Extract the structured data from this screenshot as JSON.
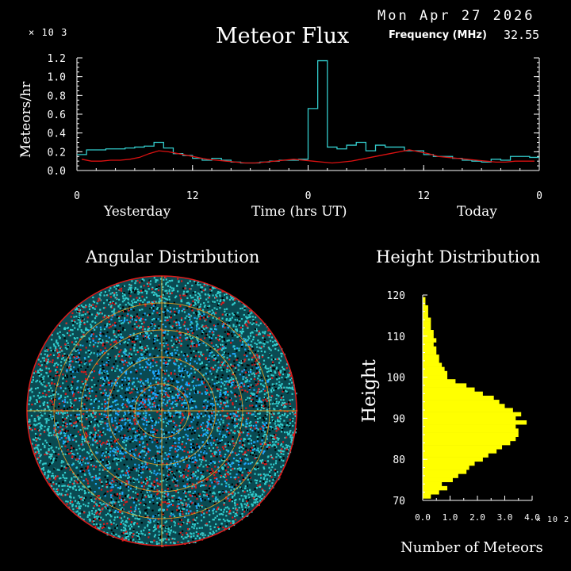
{
  "header": {
    "date": "Mon Apr 27 2026",
    "title": "Meteor Flux",
    "frequency_label": "Frequency (MHz)",
    "frequency_value": "32.55"
  },
  "colors": {
    "background": "#000000",
    "flux_series_1": "#33cccc",
    "flux_series_2": "#dd1111",
    "angular_cyan": "#33cccc",
    "angular_blue": "#1ea8ff",
    "angular_red": "#dd1a1a",
    "angular_grid": "#e8a020",
    "height_bars": "#ffff00",
    "axes": "#ffffff"
  },
  "chart_data": [
    {
      "type": "line",
      "title": "Meteor Flux",
      "multiplier_label": "× 10 3",
      "ylabel": "Meteors/hr",
      "xlabel": "Time (hrs UT)",
      "x_region_labels": [
        "Yesterday",
        "Today"
      ],
      "xtick_labels": [
        "0",
        "12",
        "0",
        "12",
        "0"
      ],
      "ytick_labels": [
        "0.0",
        "0.2",
        "0.4",
        "0.6",
        "0.8",
        "1.0",
        "1.2"
      ],
      "ylim": [
        0,
        1.2
      ],
      "xlim": [
        0,
        48
      ],
      "series": [
        {
          "step": true,
          "x": [
            0,
            1,
            2,
            3,
            4,
            5,
            6,
            7,
            8,
            9,
            10,
            11,
            12,
            13,
            14,
            15,
            16,
            17,
            18,
            19,
            20,
            21,
            22,
            23,
            24,
            25,
            26,
            27,
            28,
            29,
            30,
            31,
            32,
            33,
            34,
            35,
            36,
            37,
            38,
            39,
            40,
            41,
            42,
            43,
            44,
            45,
            46,
            47
          ],
          "values": [
            0.17,
            0.22,
            0.22,
            0.23,
            0.23,
            0.24,
            0.25,
            0.26,
            0.3,
            0.24,
            0.18,
            0.16,
            0.13,
            0.11,
            0.13,
            0.11,
            0.09,
            0.08,
            0.08,
            0.09,
            0.1,
            0.11,
            0.11,
            0.12,
            0.66,
            1.17,
            0.25,
            0.23,
            0.27,
            0.3,
            0.21,
            0.27,
            0.25,
            0.25,
            0.21,
            0.21,
            0.17,
            0.15,
            0.15,
            0.13,
            0.11,
            0.1,
            0.09,
            0.12,
            0.11,
            0.15,
            0.15,
            0.14
          ]
        },
        {
          "step": false,
          "x": [
            0,
            1,
            2,
            3,
            4,
            5,
            6,
            7,
            8,
            9,
            10,
            11,
            12,
            13,
            14,
            15,
            16,
            17,
            18,
            19,
            20,
            21,
            22,
            23,
            24,
            25,
            26,
            27,
            28,
            29,
            30,
            31,
            32,
            33,
            34,
            35,
            36,
            37,
            38,
            39,
            40,
            41,
            42,
            43,
            44,
            45,
            46,
            47
          ],
          "values": [
            0.12,
            0.1,
            0.1,
            0.11,
            0.11,
            0.12,
            0.14,
            0.18,
            0.21,
            0.2,
            0.18,
            0.16,
            0.14,
            0.12,
            0.11,
            0.1,
            0.09,
            0.08,
            0.08,
            0.09,
            0.1,
            0.11,
            0.12,
            0.11,
            0.1,
            0.09,
            0.08,
            0.09,
            0.1,
            0.12,
            0.14,
            0.16,
            0.18,
            0.2,
            0.22,
            0.2,
            0.18,
            0.15,
            0.14,
            0.13,
            0.12,
            0.11,
            0.1,
            0.09,
            0.09,
            0.1,
            0.1,
            0.1
          ]
        }
      ]
    },
    {
      "type": "scatter",
      "title": "Angular Distribution",
      "ring_count": 5,
      "points_per_ring_estimate": "dense"
    },
    {
      "type": "bar",
      "orientation": "horizontal",
      "title": "Height Distribution",
      "ylabel": "Height",
      "xlabel": "Number of Meteors",
      "multiplier_label": "× 10 2",
      "ylim": [
        70,
        120
      ],
      "xlim": [
        0,
        4.0
      ],
      "ytick_labels": [
        "70",
        "80",
        "90",
        "100",
        "110",
        "120"
      ],
      "xtick_labels": [
        "0.0",
        "1.0",
        "2.0",
        "3.0",
        "4.0"
      ],
      "heights": [
        71,
        72,
        73,
        74,
        75,
        76,
        77,
        78,
        79,
        80,
        81,
        82,
        83,
        84,
        85,
        86,
        87,
        88,
        89,
        90,
        91,
        92,
        93,
        94,
        95,
        96,
        97,
        98,
        99,
        100,
        101,
        102,
        103,
        104,
        105,
        106,
        107,
        108,
        109,
        110,
        111,
        112,
        113,
        114,
        115,
        116,
        117,
        118,
        119
      ],
      "values": [
        0.3,
        0.6,
        0.9,
        0.7,
        1.1,
        1.3,
        1.6,
        1.7,
        1.9,
        2.2,
        2.4,
        2.7,
        2.9,
        3.2,
        3.4,
        3.5,
        3.5,
        3.4,
        3.8,
        3.4,
        3.6,
        3.3,
        3.0,
        2.8,
        2.6,
        2.2,
        1.9,
        1.6,
        1.2,
        0.9,
        0.9,
        0.8,
        0.7,
        0.6,
        0.6,
        0.5,
        0.5,
        0.4,
        0.5,
        0.4,
        0.4,
        0.3,
        0.3,
        0.3,
        0.2,
        0.2,
        0.2,
        0.1,
        0.1
      ]
    }
  ]
}
